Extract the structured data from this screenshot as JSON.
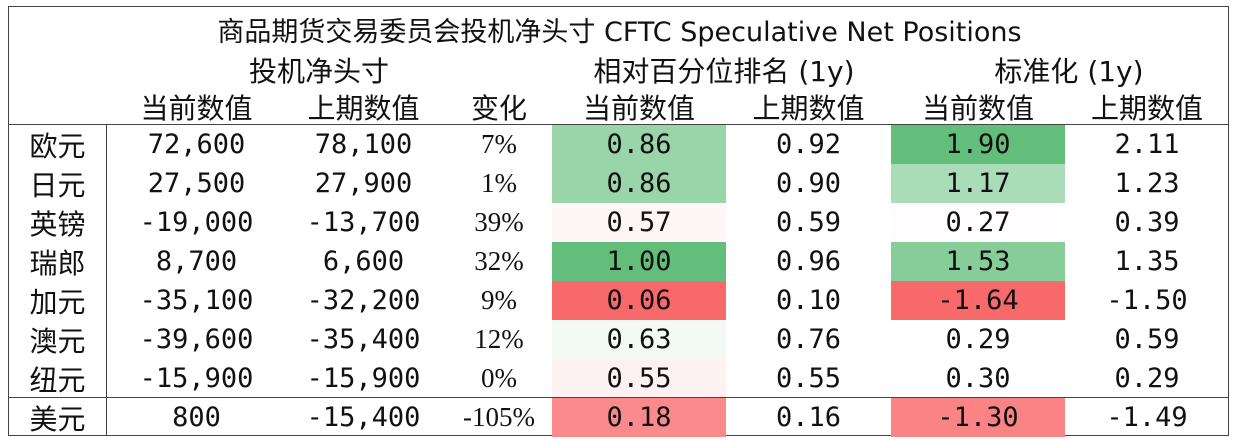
{
  "title": "商品期货交易委员会投机净头寸 CFTC Speculative Net Positions",
  "groups": {
    "net": "投机净头寸",
    "rank": "相对百分位排名 (1y)",
    "std": "标准化 (1y)"
  },
  "subheaders": {
    "net_current": "当前数值",
    "net_prior": "上期数值",
    "change": "变化",
    "rank_current": "当前数值",
    "rank_prior": "上期数值",
    "std_current": "当前数值",
    "std_prior": "上期数值"
  },
  "colors": {
    "green_strong": "#63be7b",
    "red_strong": "#f8696b",
    "neutral": "#ffffff",
    "border": "#444444"
  },
  "chart_data": {
    "type": "table",
    "title": "商品期货交易委员会投机净头寸 CFTC Speculative Net Positions",
    "columns": [
      "投机净头寸 当前数值",
      "投机净头寸 上期数值",
      "变化",
      "相对百分位排名 (1y) 当前数值",
      "相对百分位排名 (1y) 上期数值",
      "标准化 (1y) 当前数值",
      "标准化 (1y) 上期数值"
    ],
    "rows": [
      {
        "name": "欧元",
        "net_current": "72,600",
        "net_prior": "78,100",
        "change": "7%",
        "rank_current": "0.86",
        "rank_prior": "0.92",
        "std_current": "1.90",
        "std_prior": "2.11",
        "rank_value": 0.86,
        "std_value": 1.9
      },
      {
        "name": "日元",
        "net_current": "27,500",
        "net_prior": "27,900",
        "change": "1%",
        "rank_current": "0.86",
        "rank_prior": "0.90",
        "std_current": "1.17",
        "std_prior": "1.23",
        "rank_value": 0.86,
        "std_value": 1.17
      },
      {
        "name": "英镑",
        "net_current": "-19,000",
        "net_prior": "-13,700",
        "change": "39%",
        "rank_current": "0.57",
        "rank_prior": "0.59",
        "std_current": "0.27",
        "std_prior": "0.39",
        "rank_value": 0.57,
        "std_value": 0.27
      },
      {
        "name": "瑞郎",
        "net_current": "8,700",
        "net_prior": "6,600",
        "change": "32%",
        "rank_current": "1.00",
        "rank_prior": "0.96",
        "std_current": "1.53",
        "std_prior": "1.35",
        "rank_value": 1.0,
        "std_value": 1.53
      },
      {
        "name": "加元",
        "net_current": "-35,100",
        "net_prior": "-32,200",
        "change": "9%",
        "rank_current": "0.06",
        "rank_prior": "0.10",
        "std_current": "-1.64",
        "std_prior": "-1.50",
        "rank_value": 0.06,
        "std_value": -1.64
      },
      {
        "name": "澳元",
        "net_current": "-39,600",
        "net_prior": "-35,400",
        "change": "12%",
        "rank_current": "0.63",
        "rank_prior": "0.76",
        "std_current": "0.29",
        "std_prior": "0.59",
        "rank_value": 0.63,
        "std_value": 0.29
      },
      {
        "name": "纽元",
        "net_current": "-15,900",
        "net_prior": "-15,900",
        "change": "0%",
        "rank_current": "0.55",
        "rank_prior": "0.55",
        "std_current": "0.30",
        "std_prior": "0.29",
        "rank_value": 0.55,
        "std_value": 0.3
      },
      {
        "name": "美元",
        "net_current": "800",
        "net_prior": "-15,400",
        "change": "-105%",
        "rank_current": "0.18",
        "rank_prior": "0.16",
        "std_current": "-1.30",
        "std_prior": "-1.49",
        "rank_value": 0.18,
        "std_value": -1.3
      }
    ]
  }
}
